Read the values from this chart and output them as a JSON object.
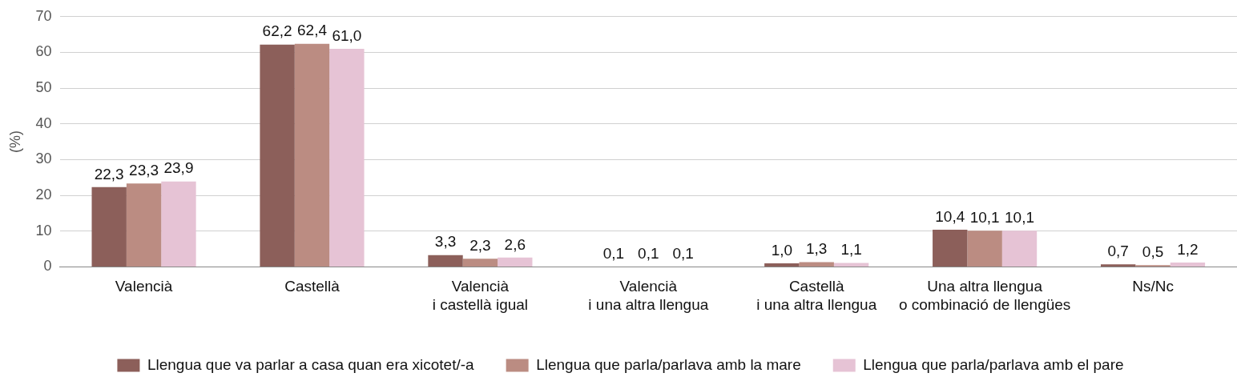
{
  "chart_data": {
    "type": "bar",
    "ylabel": "(%)",
    "categories": [
      "Valencià",
      "Castellà",
      "Valencià\ni castellà igual",
      "Valencià\ni una altra llengua",
      "Castellà\ni una altra llengua",
      "Una altra llengua\no combinació de llengües",
      "Ns/Nc"
    ],
    "series": [
      {
        "name": "Llengua que va parlar a casa quan era xicotet/-a",
        "color": "#8c5f5a",
        "values": [
          22.3,
          62.2,
          3.3,
          0.1,
          1.0,
          10.4,
          0.7
        ],
        "value_labels": [
          "22,3",
          "62,2",
          "3,3",
          "0,1",
          "1,0",
          "10,4",
          "0,7"
        ]
      },
      {
        "name": "Llengua que parla/parlava amb la mare",
        "color": "#bb8c82",
        "values": [
          23.3,
          62.4,
          2.3,
          0.1,
          1.3,
          10.1,
          0.5
        ],
        "value_labels": [
          "23,3",
          "62,4",
          "2,3",
          "0,1",
          "1,3",
          "10,1",
          "0,5"
        ]
      },
      {
        "name": "Llengua que parla/parlava amb el pare",
        "color": "#e6c3d5",
        "values": [
          23.9,
          61.0,
          2.6,
          0.1,
          1.1,
          10.1,
          1.2
        ],
        "value_labels": [
          "23,9",
          "61,0",
          "2,6",
          "0,1",
          "1,1",
          "10,1",
          "1,2"
        ]
      }
    ],
    "ylim": [
      0,
      70
    ],
    "yticks": [
      0,
      10,
      20,
      30,
      40,
      50,
      60,
      70
    ],
    "grid": "y",
    "legend": "bottom"
  }
}
